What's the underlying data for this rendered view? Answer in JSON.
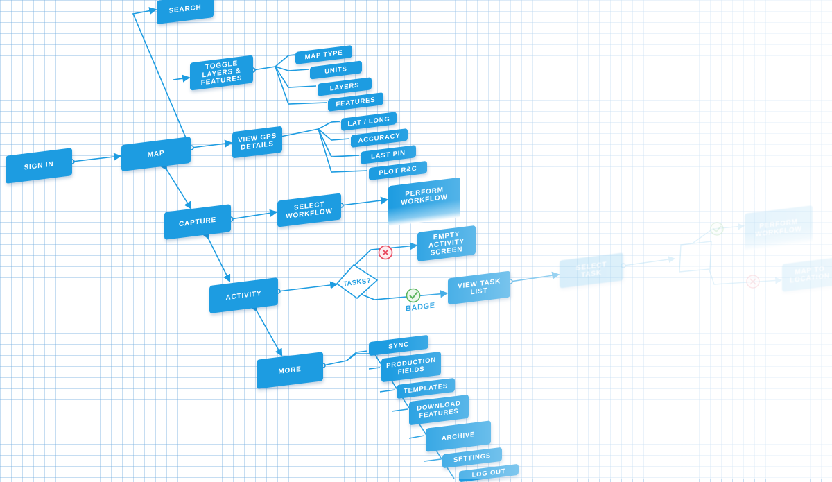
{
  "nodes": {
    "search": "SEARCH",
    "sign_in": "SIGN IN",
    "map": "MAP",
    "toggle_layers": "TOGGLE\nLAYERS &\nFEATURES",
    "map_type": "MAP TYPE",
    "units": "UNITS",
    "layers": "LAYERS",
    "features": "FEATURES",
    "view_gps": "VIEW GPS\nDETAILS",
    "lat_long": "LAT / LONG",
    "accuracy": "ACCURACY",
    "last_pin": "LAST PIN",
    "plot_rc": "PLOT R&C",
    "capture": "CAPTURE",
    "select_workflow": "SELECT\nWORKFLOW",
    "perform_workflow": "PERFORM\nWORKFLOW",
    "activity": "ACTIVITY",
    "tasks_decision": "TASKS?",
    "empty_activity": "EMPTY\nACTIVITY\nSCREEN",
    "view_task_list": "VIEW TASK\nLIST",
    "select_task": "SELECT\nTASK",
    "perform_workflow_2": "PERFORM\nWORKFLOW",
    "map_to_location": "MAP TO\nLOCATION",
    "more": "MORE",
    "sync": "SYNC",
    "production_fields": "PRODUCTION\nFIELDS",
    "templates": "TEMPLATES",
    "download_features": "DOWNLOAD\nFEATURES",
    "archive": "ARCHIVE",
    "settings": "SETTINGS",
    "log_out": "LOG OUT"
  },
  "labels": {
    "badge": "BADGE"
  },
  "colors": {
    "primary": "#1d9ce1",
    "line": "#1d9ce1",
    "yes": "#4caf50",
    "no": "#e8445a"
  },
  "icons": {
    "yes": "check-circle-icon",
    "no": "x-circle-icon"
  }
}
